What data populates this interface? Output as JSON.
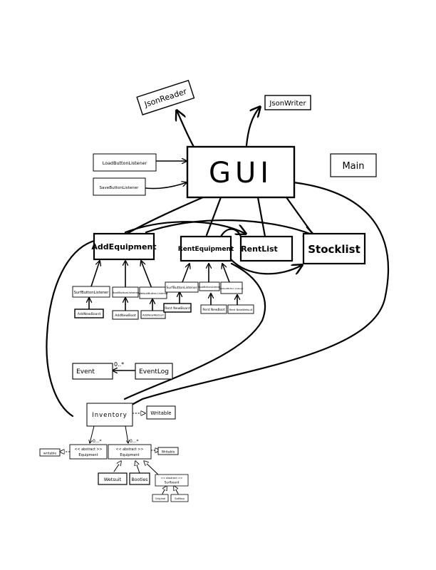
{
  "nodes": {
    "json_reader": "JsonReader",
    "json_writer": "JsonWriter",
    "gui": "GUI",
    "main": "Main",
    "load_button_listener": "LoadButtonListener",
    "save_button_listener": "SaveButtonListener",
    "add_equipment": "AddEquipment",
    "rent_equipment": "RentEquipment",
    "rent_list": "RentList",
    "stocklist": "Stocklist",
    "surf_button_listener_1": "SurfButtonListener",
    "boot_button_listener_1": "BootButtonListener",
    "wetsuit_button_listener_1": "WetsuitButton Listener",
    "add_new_board": "AddNewBoard",
    "add_new_boot": "AddNewBoot",
    "add_new_wetsuit": "AddNewWetsuit",
    "surf_button_listener_2": "SurfButtonListener",
    "boot_button_listener_2": "BootButtonListener",
    "wetsuit_button_listener_2": "WetsuitButton Listener",
    "rent_new_board": "Rent NewBoard",
    "rent_new_boot": "Rent NewBoot",
    "rent_new_wetsuit": "Rent NewWetsuit",
    "event": "Event",
    "event_log": "EventLog",
    "inventory": "Inventory",
    "writable_1": "Writable",
    "abstract_equipment_1_stereotype": "<< abstract >>",
    "abstract_equipment_1_name": "Equipment",
    "abstract_equipment_2_stereotype": "<< abstract >>",
    "abstract_equipment_2_name": "Equipment",
    "writable_2": "writable",
    "writable_3": "Writable",
    "wetsuit": "Wetsuit",
    "booties": "Booties",
    "surfboard_stereotype": "<< abstract >>",
    "surfboard_name": "Surfboard",
    "original": "Original",
    "softtop": "Softtop"
  },
  "multiplicities": {
    "event_log_to_event": "0..*",
    "inventory_to_equipment_1": "0...*",
    "inventory_to_equipment_2": "0...*"
  }
}
